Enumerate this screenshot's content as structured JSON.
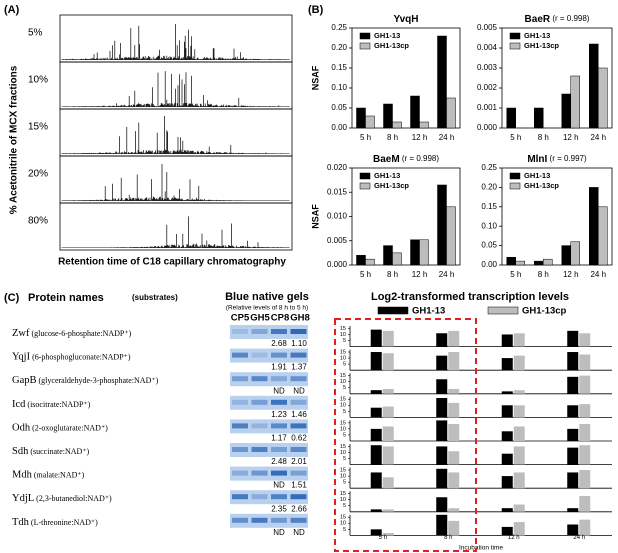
{
  "panel_a": {
    "label": "(A)",
    "fractions": [
      "5%",
      "10%",
      "15%",
      "20%",
      "80%"
    ],
    "y_label": "% Acetonitrile of MCX fractions",
    "x_label": "Retention time of C18 capillary chromatography"
  },
  "panel_b_label": "(B)",
  "chart_data": [
    {
      "type": "bar",
      "title": "YvqH",
      "y_label": "NSAF",
      "categories": [
        "5 h",
        "8 h",
        "12 h",
        "24 h"
      ],
      "series": [
        {
          "name": "GH1-13",
          "color": "#000000",
          "values": [
            0.05,
            0.06,
            0.08,
            0.23
          ]
        },
        {
          "name": "GH1-13cp",
          "color": "#bdbdbd",
          "values": [
            0.03,
            0.015,
            0.015,
            0.075
          ]
        }
      ],
      "ylim": [
        0,
        0.25
      ],
      "yticks": [
        {
          "value": 0,
          "label": "0.00"
        },
        0.05,
        {
          "value": 0.1,
          "label": "0.10"
        },
        0.15,
        {
          "value": 0.2,
          "label": "0.20"
        },
        0.25
      ]
    },
    {
      "type": "bar",
      "title": "BaeR",
      "note": "(r = 0.998)",
      "categories": [
        "5 h",
        "8 h",
        "12 h",
        "24 h"
      ],
      "series": [
        {
          "name": "GH1-13",
          "color": "#000000",
          "values": [
            0.001,
            0.001,
            0.0017,
            0.0042
          ]
        },
        {
          "name": "GH1-13cp",
          "color": "#bdbdbd",
          "values": [
            0,
            0,
            0.0026,
            0.003
          ]
        }
      ],
      "ylim": [
        0,
        0.005
      ],
      "yticks": [
        {
          "value": 0,
          "label": "0.000"
        },
        0.001,
        0.002,
        0.003,
        0.004,
        0.005
      ]
    },
    {
      "type": "bar",
      "title": "BaeM",
      "note": "(r = 0.998)",
      "y_label": "NSAF",
      "categories": [
        "5 h",
        "8 h",
        "12 h",
        "24 h"
      ],
      "series": [
        {
          "name": "GH1-13",
          "color": "#000000",
          "values": [
            0.002,
            0.004,
            0.0052,
            0.0165
          ]
        },
        {
          "name": "GH1-13cp",
          "color": "#bdbdbd",
          "values": [
            0.0012,
            0.0025,
            0.0052,
            0.012
          ]
        }
      ],
      "ylim": [
        0,
        0.02
      ],
      "yticks": [
        {
          "value": 0,
          "label": "0.000"
        },
        0.005,
        {
          "value": 0.01,
          "label": "0.010"
        },
        0.015,
        {
          "value": 0.02,
          "label": "0.020"
        }
      ]
    },
    {
      "type": "bar",
      "title": "MlnI",
      "note": "(r = 0.997)",
      "categories": [
        "5 h",
        "8 h",
        "12 h",
        "24 h"
      ],
      "series": [
        {
          "name": "GH1-13",
          "color": "#000000",
          "values": [
            0.02,
            0.01,
            0.05,
            0.2
          ]
        },
        {
          "name": "GH1-13cp",
          "color": "#bdbdbd",
          "values": [
            0.01,
            0.015,
            0.06,
            0.15
          ]
        }
      ],
      "ylim": [
        0,
        0.25
      ],
      "yticks": [
        {
          "value": 0,
          "label": "0.00"
        },
        0.05,
        {
          "value": 0.1,
          "label": "0.10"
        },
        0.15,
        {
          "value": 0.2,
          "label": "0.20"
        },
        0.25
      ]
    }
  ],
  "panel_c": {
    "label": "(C)",
    "names_header": "Protein names",
    "names_header_note": "(substrates)",
    "gel_header": "Blue native gels",
    "gel_note": "(Relative levels of 8 h to 5 h)",
    "lanes": [
      "CP5",
      "GH5",
      "CP8",
      "GH8"
    ],
    "transcription_header": "Log2-transformed transcription levels",
    "x_label": "Incubation time",
    "categories": [
      "5 h",
      "8 h",
      "12 h",
      "24 h"
    ],
    "series": [
      {
        "name": "GH1-13",
        "color": "#000000"
      },
      {
        "name": "GH1-13cp",
        "color": "#bdbdbd"
      }
    ],
    "ylim": [
      0,
      17
    ],
    "yticks": [
      5,
      10,
      15
    ],
    "rows": [
      {
        "name": "Zwf",
        "substrate": "(glucose-6-phosphate:NADP⁺)",
        "ratios": [
          "2.68",
          "1.10"
        ],
        "values": [
          [
            14,
            11,
            10,
            13
          ],
          [
            13,
            13,
            11,
            11
          ]
        ]
      },
      {
        "name": "YqjI",
        "substrate": "(6-phosphogluconate:NADP⁺)",
        "ratios": [
          "1.91",
          "1.37"
        ],
        "values": [
          [
            15,
            12,
            10,
            15
          ],
          [
            14,
            15,
            12,
            13
          ]
        ]
      },
      {
        "name": "GapB",
        "substrate": "(glyceraldehyde-3-phosphate:NAD⁺)",
        "ratios": [
          "ND",
          "ND"
        ],
        "values": [
          [
            3,
            12,
            2,
            14
          ],
          [
            4,
            4,
            3,
            15
          ]
        ]
      },
      {
        "name": "Icd",
        "substrate": "(isocitrate:NADP⁺)",
        "ratios": [
          "1.23",
          "1.46"
        ],
        "values": [
          [
            8,
            16,
            10,
            10
          ],
          [
            9,
            12,
            10,
            11
          ]
        ]
      },
      {
        "name": "Odh",
        "substrate": "(2-oxoglutarate:NAD⁺)",
        "ratios": [
          "1.17",
          "0.62"
        ],
        "values": [
          [
            10,
            17,
            8,
            10
          ],
          [
            12,
            14,
            12,
            14
          ]
        ]
      },
      {
        "name": "Sdh",
        "substrate": "(succinate:NAD⁺)",
        "ratios": [
          "2.48",
          "2.01"
        ],
        "values": [
          [
            16,
            15,
            9,
            14
          ],
          [
            15,
            11,
            15,
            16
          ]
        ]
      },
      {
        "name": "Mdh",
        "substrate": "(malate:NAD⁺)",
        "ratios": [
          "ND",
          "1.51"
        ],
        "values": [
          [
            13,
            16,
            10,
            13
          ],
          [
            9,
            13,
            13,
            15
          ]
        ]
      },
      {
        "name": "YdjL",
        "substrate": "(2,3-butanediol:NAD⁺)",
        "ratios": [
          "2.35",
          "2.66"
        ],
        "values": [
          [
            2,
            12,
            3,
            3
          ],
          [
            2,
            3,
            6,
            13
          ]
        ]
      },
      {
        "name": "Tdh",
        "substrate": "(L-threonine:NAD⁺)",
        "ratios": [
          "ND",
          "ND"
        ],
        "values": [
          [
            5,
            17,
            7,
            9
          ],
          [
            2,
            12,
            11,
            13
          ]
        ]
      }
    ]
  }
}
